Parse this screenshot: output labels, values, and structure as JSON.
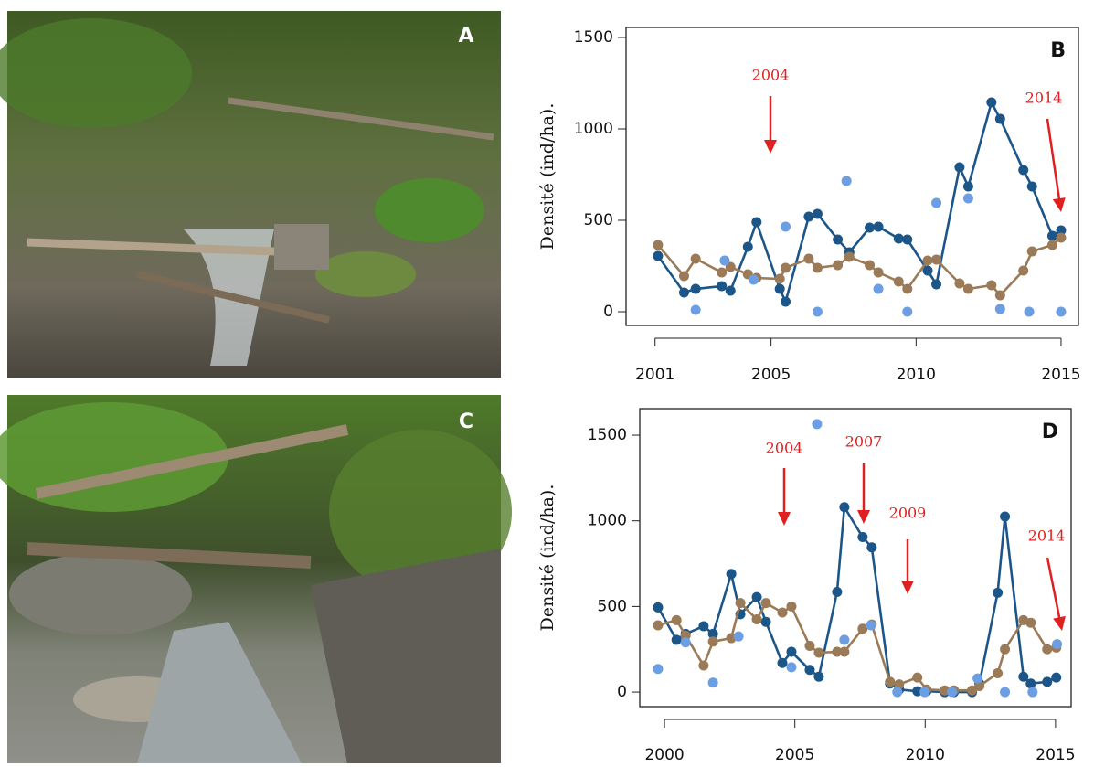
{
  "photos": [
    {
      "label": "A"
    },
    {
      "label": "C"
    }
  ],
  "chart_data": [
    {
      "type": "line",
      "label": "B",
      "y_label": "Densité (ind/ha).",
      "xlim": [
        2000,
        2015.6
      ],
      "xticks": [
        2001,
        2005,
        2010,
        2015
      ],
      "ylim": [
        -75,
        1555
      ],
      "yticks": [
        0,
        500,
        1000,
        1500
      ],
      "annotations": [
        {
          "text": "2004"
        },
        {
          "text": "2014"
        }
      ],
      "series": [
        {
          "color": "#1c5689",
          "line": true,
          "x": [
            2001.1,
            2002.0,
            2002.4,
            2003.3,
            2003.6,
            2004.2,
            2004.5,
            2005.3,
            2005.5,
            2006.3,
            2006.6,
            2007.3,
            2007.7,
            2008.4,
            2008.7,
            2009.4,
            2009.7,
            2010.4,
            2010.7,
            2011.5,
            2011.8,
            2012.6,
            2012.9,
            2013.7,
            2014.0,
            2014.7,
            2015.0
          ],
          "values": [
            305,
            105,
            125,
            140,
            115,
            355,
            490,
            125,
            55,
            520,
            535,
            395,
            325,
            460,
            465,
            400,
            395,
            225,
            150,
            790,
            685,
            1145,
            1055,
            775,
            685,
            415,
            445
          ]
        },
        {
          "color": "#9a7a57",
          "line": true,
          "x": [
            2001.1,
            2002.0,
            2002.4,
            2003.3,
            2003.6,
            2004.2,
            2004.5,
            2005.3,
            2005.5,
            2006.3,
            2006.6,
            2007.3,
            2007.7,
            2008.4,
            2008.7,
            2009.4,
            2009.7,
            2010.4,
            2010.7,
            2011.5,
            2011.8,
            2012.6,
            2012.9,
            2013.7,
            2014.0,
            2014.7,
            2015.0
          ],
          "values": [
            365,
            195,
            290,
            215,
            245,
            205,
            185,
            180,
            240,
            290,
            240,
            255,
            300,
            255,
            215,
            165,
            125,
            280,
            285,
            155,
            125,
            145,
            90,
            225,
            330,
            365,
            405
          ]
        },
        {
          "color": "#6b9ee3",
          "line": false,
          "x": [
            2002.4,
            2003.4,
            2004.4,
            2005.5,
            2006.6,
            2007.6,
            2008.7,
            2009.7,
            2010.7,
            2011.8,
            2012.9,
            2013.9,
            2015.0
          ],
          "values": [
            10,
            280,
            175,
            465,
            0,
            715,
            125,
            0,
            595,
            620,
            15,
            0,
            0
          ]
        }
      ]
    },
    {
      "type": "line",
      "label": "D",
      "y_label": "Densité (ind/ha).",
      "xlim": [
        1999.05,
        2015.6
      ],
      "xticks": [
        2000,
        2005,
        2010,
        2015
      ],
      "ylim": [
        -85,
        1655
      ],
      "yticks": [
        0,
        500,
        1000,
        1500
      ],
      "annotations": [
        {
          "text": "2004"
        },
        {
          "text": "2007"
        },
        {
          "text": "2009"
        },
        {
          "text": "2014"
        }
      ],
      "series": [
        {
          "color": "#1c5689",
          "line": true,
          "x": [
            1999.75,
            2000.46,
            2000.81,
            2001.5,
            2001.86,
            2002.56,
            2002.91,
            2003.54,
            2003.89,
            2004.52,
            2004.87,
            2005.57,
            2005.92,
            2006.62,
            2006.9,
            2007.6,
            2007.95,
            2008.65,
            2009.0,
            2009.7,
            2010.05,
            2010.75,
            2011.1,
            2011.8,
            2012.08,
            2012.78,
            2013.06,
            2013.77,
            2014.05,
            2014.68,
            2015.03
          ],
          "values": [
            495,
            305,
            340,
            385,
            340,
            690,
            455,
            555,
            410,
            170,
            235,
            130,
            90,
            585,
            1080,
            905,
            845,
            50,
            15,
            5,
            5,
            0,
            0,
            0,
            50,
            580,
            1025,
            90,
            50,
            60,
            85
          ]
        },
        {
          "color": "#9a7a57",
          "line": true,
          "x": [
            1999.75,
            2000.46,
            2000.81,
            2001.5,
            2001.86,
            2002.56,
            2002.91,
            2003.54,
            2003.89,
            2004.52,
            2004.87,
            2005.57,
            2005.92,
            2006.62,
            2006.9,
            2007.6,
            2007.95,
            2008.65,
            2009.0,
            2009.7,
            2010.05,
            2010.75,
            2011.1,
            2011.8,
            2012.08,
            2012.78,
            2013.06,
            2013.77,
            2014.05,
            2014.68,
            2015.03
          ],
          "values": [
            390,
            420,
            330,
            155,
            295,
            315,
            520,
            425,
            520,
            465,
            500,
            270,
            230,
            235,
            235,
            370,
            395,
            60,
            45,
            85,
            15,
            10,
            10,
            10,
            35,
            110,
            250,
            420,
            405,
            250,
            260
          ]
        },
        {
          "color": "#6b9ee3",
          "line": false,
          "x": [
            1999.75,
            2000.81,
            2001.86,
            2002.84,
            2004.87,
            2005.85,
            2006.9,
            2007.92,
            2008.93,
            2009.98,
            2011.03,
            2012.01,
            2013.06,
            2014.12,
            2015.06
          ],
          "values": [
            135,
            290,
            55,
            325,
            145,
            1565,
            305,
            390,
            0,
            0,
            0,
            80,
            0,
            0,
            280
          ]
        }
      ]
    }
  ]
}
